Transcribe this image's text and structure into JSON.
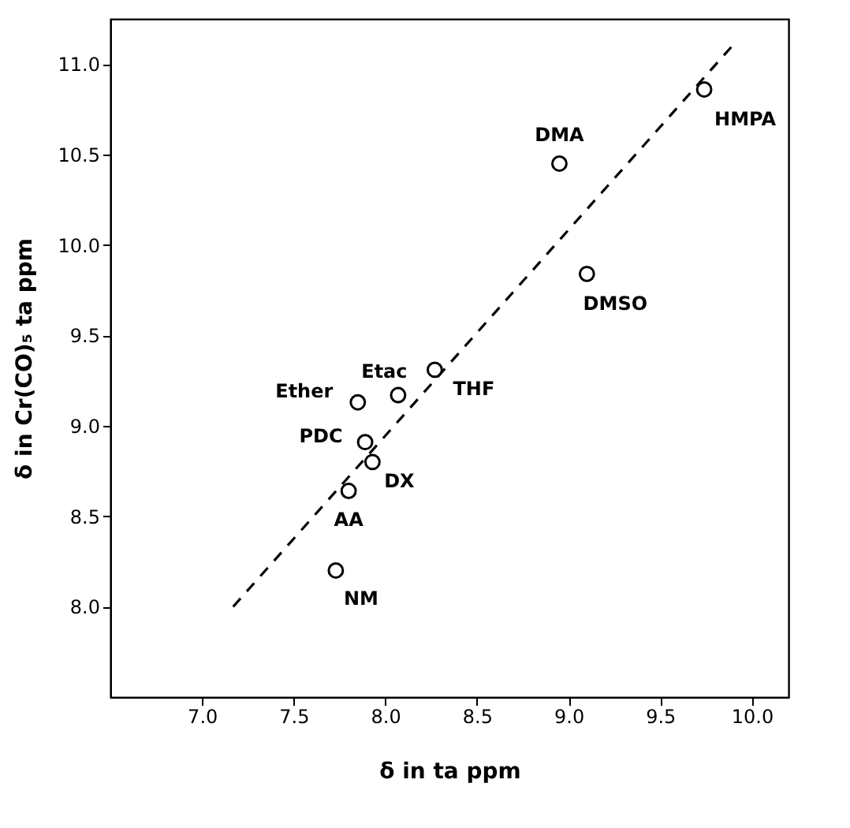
{
  "chart_data": {
    "type": "scatter",
    "xlabel": "δ in ta      ppm",
    "ylabel": "δ in Cr(CO)₅ ta   ppm",
    "xlim": [
      6.5,
      10.2
    ],
    "ylim": [
      7.5,
      11.25
    ],
    "xticks": [
      {
        "value": 7,
        "label": "7.0"
      },
      {
        "value": 7.5,
        "label": "7.5"
      },
      {
        "value": 8,
        "label": "8.0"
      },
      {
        "value": 8.5,
        "label": "8.5"
      },
      {
        "value": 9,
        "label": "9.0"
      },
      {
        "value": 9.5,
        "label": "9.5"
      },
      {
        "value": 10,
        "label": "10.0"
      }
    ],
    "yticks": [
      {
        "value": 8,
        "label": "8.0"
      },
      {
        "value": 8.5,
        "label": "8.5"
      },
      {
        "value": 9,
        "label": "9.0"
      },
      {
        "value": 9.5,
        "label": "9.5"
      },
      {
        "value": 10,
        "label": "10.0"
      },
      {
        "value": 10.5,
        "label": "10.5"
      },
      {
        "value": 11,
        "label": "11.0"
      }
    ],
    "grid": false,
    "series": [
      {
        "color": "#000000",
        "marker": "circle",
        "x": [
          9.74,
          8.95,
          9.1,
          8.27,
          8.07,
          7.85,
          7.89,
          7.93,
          7.8,
          7.73
        ],
        "values": [
          10.86,
          10.45,
          9.84,
          9.31,
          9.17,
          9.13,
          8.91,
          8.8,
          8.64,
          8.2
        ]
      },
      {
        "type": "line",
        "color": "#000000",
        "line_style": "dashed",
        "marker": "none",
        "x": [
          7.17,
          9.91
        ],
        "values": [
          8.0,
          11.12
        ]
      }
    ],
    "annotations": [
      {
        "text": "HMPA",
        "x": 9.74,
        "y": 10.86
      },
      {
        "text": "DMA",
        "x": 8.95,
        "y": 10.45
      },
      {
        "text": "DMSO",
        "x": 9.1,
        "y": 9.84
      },
      {
        "text": "Etac",
        "x": 8.27,
        "y": 9.31
      },
      {
        "text": "THF",
        "x": 8.07,
        "y": 9.17
      },
      {
        "text": "Ether",
        "x": 7.85,
        "y": 9.13
      },
      {
        "text": "PDC",
        "x": 7.89,
        "y": 8.91
      },
      {
        "text": "DX",
        "x": 7.93,
        "y": 8.8
      },
      {
        "text": "AA",
        "x": 7.8,
        "y": 8.64
      },
      {
        "text": "NM",
        "x": 7.73,
        "y": 8.2
      }
    ]
  }
}
